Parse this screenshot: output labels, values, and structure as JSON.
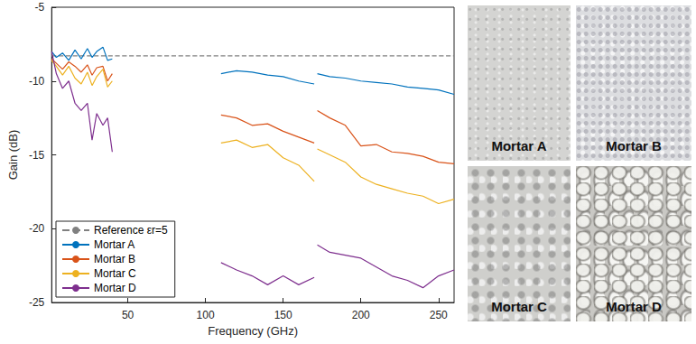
{
  "chart_data": {
    "type": "line",
    "x_label": "Frequency (GHz)",
    "y_label": "Gain (dB)",
    "xlim": [
      1,
      260
    ],
    "xticks": [
      50,
      100,
      150,
      200,
      250
    ],
    "ylim": [
      -25,
      -5
    ],
    "yticks": [
      -25,
      -20,
      -15,
      -10,
      -5
    ],
    "grid": false,
    "legend": "lower left",
    "x": [
      1,
      4,
      8,
      12,
      16,
      20,
      24,
      27,
      30,
      34,
      37,
      40,
      75,
      110,
      120,
      130,
      140,
      150,
      160,
      170,
      171,
      172,
      180,
      190,
      200,
      210,
      220,
      230,
      240,
      250,
      260
    ],
    "reference": {
      "name": "Reference εr=5",
      "x": [
        1,
        260
      ],
      "values": [
        -8.3,
        -8.3
      ],
      "color": "#808080",
      "line_style": "dashed"
    },
    "series": [
      {
        "name": "Mortar A",
        "color": "#0072BD",
        "values": [
          -8.0,
          -8.4,
          -8.1,
          -8.6,
          -7.9,
          -8.5,
          -7.8,
          -8.4,
          -8.0,
          -7.7,
          -8.6,
          -8.5,
          null,
          -9.5,
          -9.3,
          -9.4,
          -9.6,
          -9.7,
          -10.0,
          -10.2,
          null,
          -9.5,
          -9.7,
          -9.8,
          -10.0,
          -10.1,
          -10.2,
          -10.4,
          -10.5,
          -10.6,
          -10.9
        ]
      },
      {
        "name": "Mortar B",
        "color": "#D95319",
        "values": [
          -8.5,
          -8.8,
          -9.2,
          -8.7,
          -9.0,
          -9.4,
          -8.9,
          -9.6,
          -9.1,
          -9.0,
          -10.0,
          -9.5,
          null,
          -12.3,
          -12.5,
          -13.0,
          -12.9,
          -13.4,
          -13.8,
          -14.2,
          null,
          -12.0,
          -12.5,
          -13.0,
          -14.4,
          -14.3,
          -14.8,
          -14.9,
          -15.1,
          -15.5,
          -15.6
        ]
      },
      {
        "name": "Mortar C",
        "color": "#EDB120",
        "values": [
          -8.6,
          -9.0,
          -9.6,
          -9.0,
          -9.8,
          -10.2,
          -9.4,
          -10.3,
          -9.7,
          -9.2,
          -10.4,
          -10.0,
          null,
          -14.2,
          -14.0,
          -14.5,
          -14.3,
          -15.2,
          -15.7,
          -16.8,
          null,
          -14.6,
          -15.0,
          -15.5,
          -16.5,
          -17.0,
          -17.3,
          -17.6,
          -17.8,
          -18.3,
          -18.0
        ]
      },
      {
        "name": "Mortar D",
        "color": "#7E2F8E",
        "values": [
          -8.0,
          -9.5,
          -10.5,
          -10.0,
          -11.5,
          -12.0,
          -11.5,
          -14.0,
          -12.2,
          -13.0,
          -12.5,
          -14.8,
          null,
          -22.3,
          -22.8,
          -23.2,
          -23.8,
          -23.2,
          -23.8,
          -23.3,
          null,
          -21.1,
          -21.6,
          -21.8,
          -22.0,
          -22.6,
          -23.2,
          -23.5,
          -24.0,
          -23.2,
          -22.8
        ]
      }
    ]
  },
  "photos": [
    "Mortar A",
    "Mortar B",
    "Mortar C",
    "Mortar D"
  ]
}
